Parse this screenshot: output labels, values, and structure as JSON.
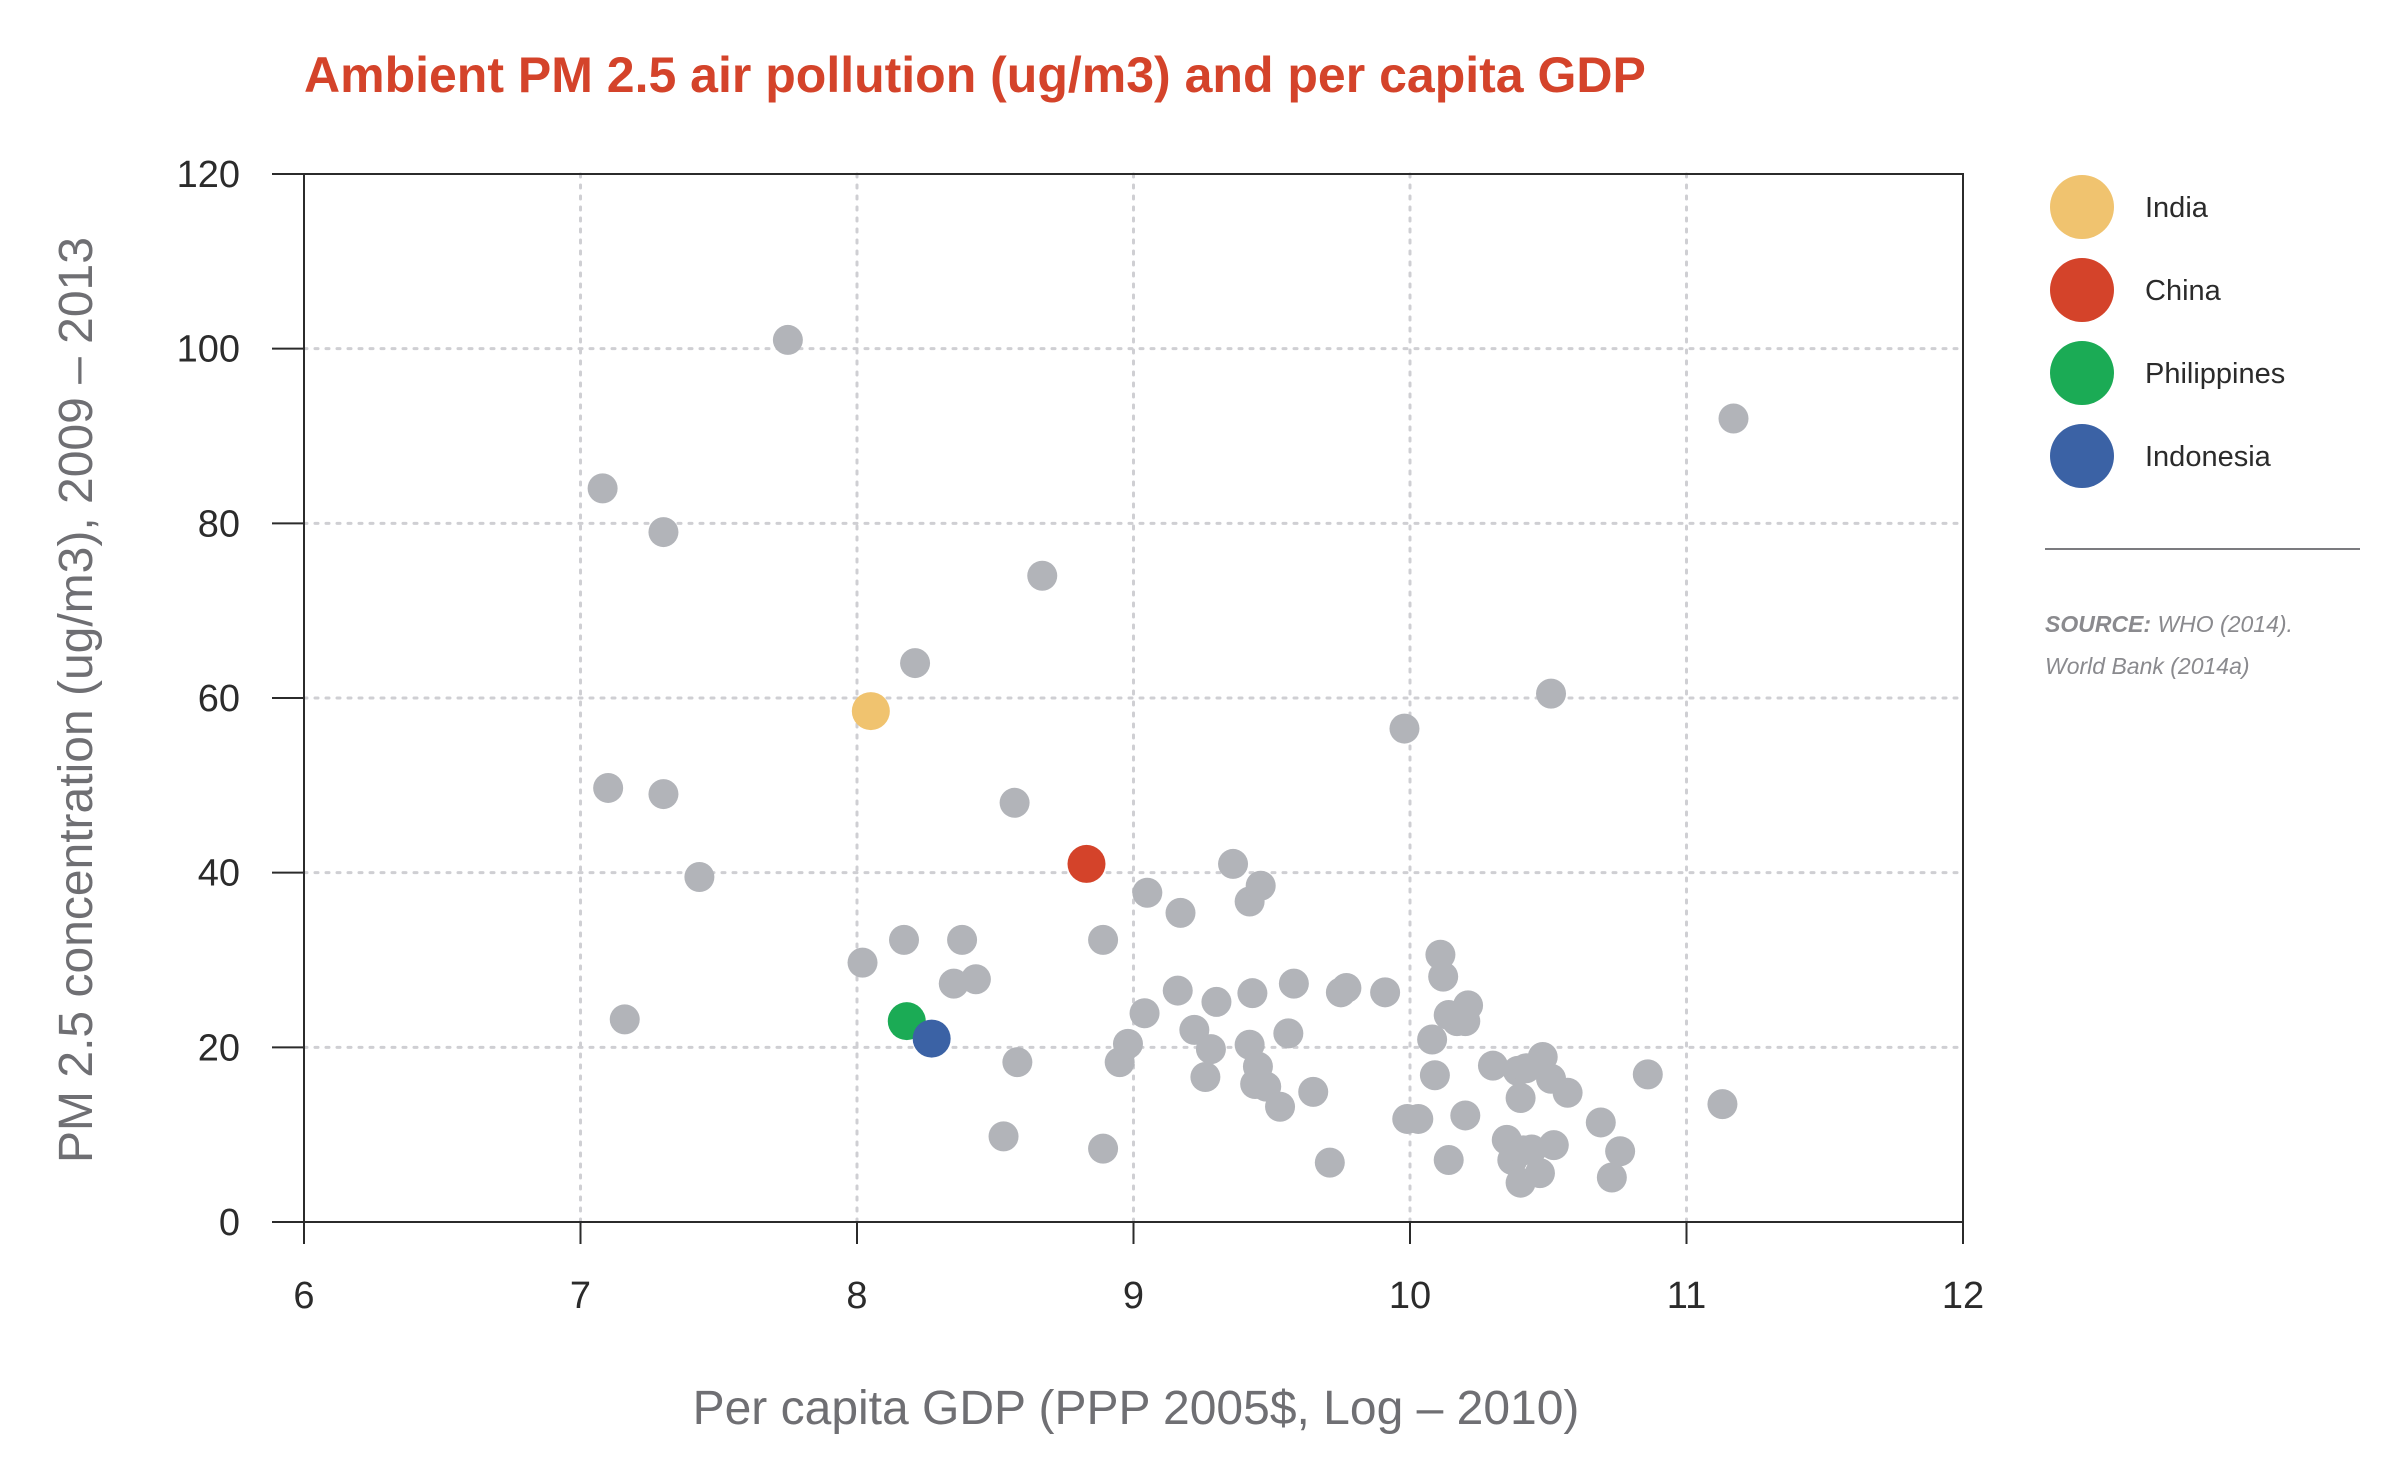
{
  "chart_data": {
    "type": "scatter",
    "title": "Ambient PM 2.5 air pollution (ug/m3) and per capita GDP",
    "xlabel": "Per capita GDP (PPP 2005$, Log – 2010)",
    "ylabel": "PM 2.5 concentration (ug/m3), 2009 – 2013",
    "xlim": [
      6,
      12
    ],
    "ylim": [
      0,
      120
    ],
    "xticks": [
      "6",
      "7",
      "8",
      "9",
      "10",
      "11",
      "12"
    ],
    "yticks": [
      "0",
      "20",
      "40",
      "60",
      "80",
      "100",
      "120"
    ],
    "grid": true,
    "legend_position": "right",
    "series": [
      {
        "name": "India",
        "color": "#f0c36f",
        "points": [
          [
            8.05,
            58.5
          ]
        ]
      },
      {
        "name": "China",
        "color": "#d4432a",
        "points": [
          [
            8.83,
            41
          ]
        ]
      },
      {
        "name": "Philippines",
        "color": "#1bab55",
        "points": [
          [
            8.18,
            23
          ]
        ]
      },
      {
        "name": "Indonesia",
        "color": "#3b62a5",
        "points": [
          [
            8.27,
            21
          ]
        ]
      },
      {
        "name": "",
        "color": "#b2b4b9",
        "points": [
          [
            7.75,
            101
          ],
          [
            7.08,
            84
          ],
          [
            7.3,
            79
          ],
          [
            8.67,
            74
          ],
          [
            8.21,
            64
          ],
          [
            9.98,
            56.5
          ],
          [
            10.51,
            60.5
          ],
          [
            11.17,
            92
          ],
          [
            7.1,
            49.7
          ],
          [
            7.3,
            49
          ],
          [
            8.57,
            48
          ],
          [
            7.43,
            39.5
          ],
          [
            7.16,
            23.2
          ],
          [
            8.02,
            29.7
          ],
          [
            8.17,
            32.3
          ],
          [
            8.38,
            32.3
          ],
          [
            8.35,
            27.3
          ],
          [
            8.43,
            27.8
          ],
          [
            8.58,
            18.3
          ],
          [
            8.53,
            9.8
          ],
          [
            8.89,
            32.3
          ],
          [
            8.89,
            8.4
          ],
          [
            8.95,
            18.3
          ],
          [
            8.98,
            20.4
          ],
          [
            9.04,
            23.9
          ],
          [
            9.05,
            37.7
          ],
          [
            9.17,
            35.4
          ],
          [
            9.16,
            26.5
          ],
          [
            9.22,
            22
          ],
          [
            9.26,
            16.6
          ],
          [
            9.28,
            19.8
          ],
          [
            9.3,
            25.2
          ],
          [
            9.36,
            41
          ],
          [
            9.42,
            36.7
          ],
          [
            9.46,
            38.5
          ],
          [
            9.43,
            26.2
          ],
          [
            9.42,
            20.3
          ],
          [
            9.45,
            17.8
          ],
          [
            9.44,
            15.8
          ],
          [
            9.48,
            15.5
          ],
          [
            9.53,
            13.2
          ],
          [
            9.56,
            21.6
          ],
          [
            9.58,
            27.3
          ],
          [
            9.65,
            14.9
          ],
          [
            9.71,
            6.8
          ],
          [
            9.75,
            26.3
          ],
          [
            9.77,
            26.8
          ],
          [
            9.91,
            26.3
          ],
          [
            9.99,
            11.8
          ],
          [
            10.03,
            11.8
          ],
          [
            10.08,
            20.9
          ],
          [
            10.09,
            16.8
          ],
          [
            10.11,
            30.6
          ],
          [
            10.12,
            28.1
          ],
          [
            10.14,
            23.7
          ],
          [
            10.17,
            23
          ],
          [
            10.2,
            23
          ],
          [
            10.21,
            24.8
          ],
          [
            10.2,
            12.2
          ],
          [
            10.14,
            7.1
          ],
          [
            10.3,
            17.9
          ],
          [
            10.39,
            17.3
          ],
          [
            10.4,
            14.2
          ],
          [
            10.42,
            17.6
          ],
          [
            10.48,
            18.9
          ],
          [
            10.51,
            16.4
          ],
          [
            10.57,
            14.8
          ],
          [
            10.35,
            9.4
          ],
          [
            10.37,
            7.1
          ],
          [
            10.41,
            8.2
          ],
          [
            10.44,
            8.3
          ],
          [
            10.47,
            5.6
          ],
          [
            10.4,
            4.5
          ],
          [
            10.52,
            8.8
          ],
          [
            10.69,
            11.4
          ],
          [
            10.73,
            5.1
          ],
          [
            10.76,
            8.1
          ],
          [
            10.86,
            16.9
          ],
          [
            11.13,
            13.5
          ]
        ]
      }
    ],
    "legend": [
      {
        "label": "India",
        "color": "#f0c36f"
      },
      {
        "label": "China",
        "color": "#d4432a"
      },
      {
        "label": "Philippines",
        "color": "#1bab55"
      },
      {
        "label": "Indonesia",
        "color": "#3b62a5"
      }
    ],
    "source": {
      "label": "SOURCE:",
      "line1": " WHO (2014).",
      "line2": "World Bank (2014a)"
    },
    "title_color": "#d4432a",
    "other_color": "#b2b4b9"
  }
}
